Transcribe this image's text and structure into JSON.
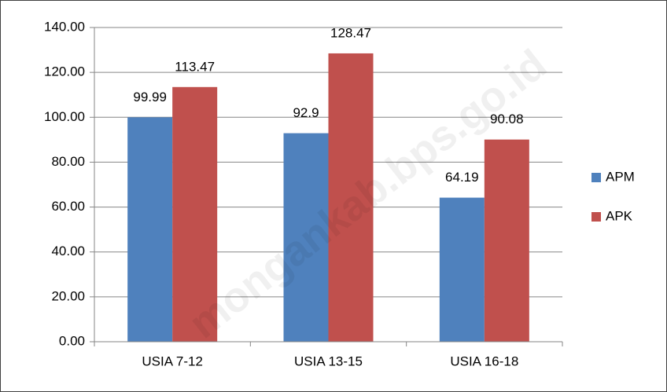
{
  "chart_data": {
    "type": "bar",
    "categories": [
      "USIA 7-12",
      "USIA 13-15",
      "USIA 16-18"
    ],
    "series": [
      {
        "name": "APM",
        "color": "#4f81bd",
        "values": [
          99.99,
          92.9,
          64.19
        ]
      },
      {
        "name": "APK",
        "color": "#c0504d",
        "values": [
          113.47,
          128.47,
          90.08
        ]
      }
    ],
    "ylim": [
      0,
      140
    ],
    "yticks": [
      {
        "value": 0,
        "label": "0.00"
      },
      {
        "value": 20,
        "label": "20.00"
      },
      {
        "value": 40,
        "label": "40.00"
      },
      {
        "value": 60,
        "label": "60.00"
      },
      {
        "value": 80,
        "label": "80.00"
      },
      {
        "value": 100,
        "label": "100.00"
      },
      {
        "value": 120,
        "label": "120.00"
      },
      {
        "value": 140,
        "label": "140.00"
      }
    ],
    "grid": true,
    "legend": "right",
    "watermark": "mongankab.bps.go.id"
  }
}
